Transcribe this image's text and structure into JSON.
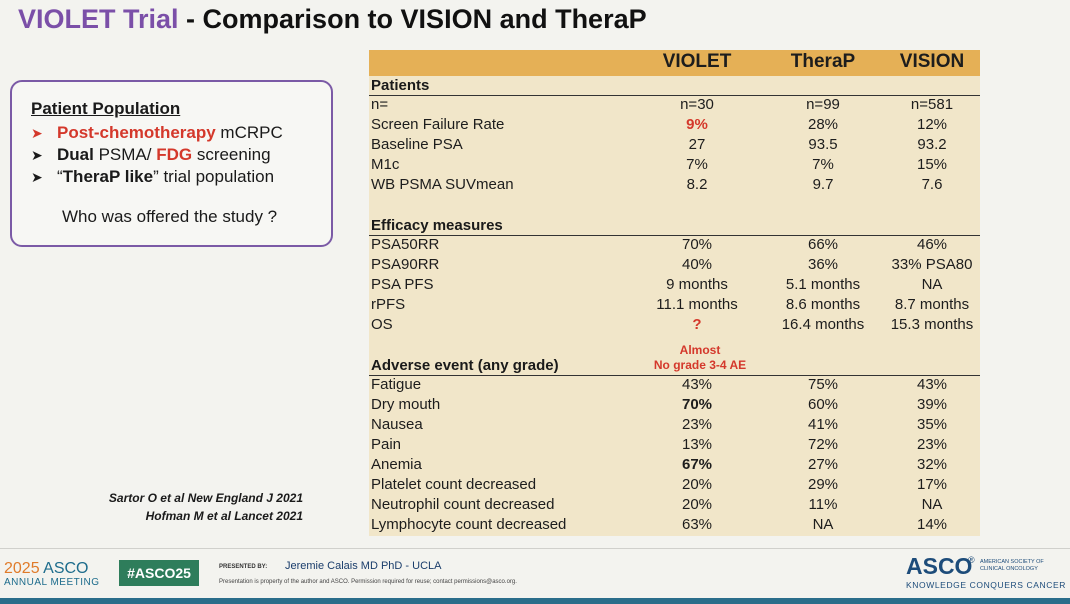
{
  "title": {
    "part1": "VIOLET Trial",
    "part2": " - Comparison to VISION and TheraP"
  },
  "population": {
    "heading": "Patient Population",
    "bullet1_strong": "Post-chemotherapy",
    "bullet1_rest": " mCRPC",
    "bullet2_dual": "Dual",
    "bullet2_mid": " PSMA/ ",
    "bullet2_fdg": "FDG",
    "bullet2_rest": " screening",
    "bullet3_q1": "“",
    "bullet3_strong": "TheraP like",
    "bullet3_rest": "” trial population",
    "question": "Who was offered the study ?"
  },
  "table": {
    "columns": [
      "VIOLET",
      "TheraP",
      "VISION"
    ],
    "sections": {
      "patients": "Patients",
      "efficacy": "Efficacy measures",
      "adverse": "Adverse event (any grade)"
    },
    "adverse_note_line1": "Almost",
    "adverse_note_line2": "No grade 3-4  AE",
    "rows": [
      {
        "label": "n=",
        "v": "n=30",
        "t": "n=99",
        "s": "n=581"
      },
      {
        "label": "Screen Failure Rate",
        "v": "9%",
        "t": "28%",
        "s": "12%"
      },
      {
        "label": "Baseline PSA",
        "v": "27",
        "t": "93.5",
        "s": "93.2"
      },
      {
        "label": "M1c",
        "v": "7%",
        "t": "7%",
        "s": "15%"
      },
      {
        "label": "WB PSMA SUVmean",
        "v": "8.2",
        "t": "9.7",
        "s": "7.6"
      },
      {
        "label": "PSA50RR",
        "v": "70%",
        "t": "66%",
        "s": "46%"
      },
      {
        "label": "PSA90RR",
        "v": "40%",
        "t": "36%",
        "s": "33% PSA80"
      },
      {
        "label": "PSA PFS",
        "v": "9 months",
        "t": "5.1 months",
        "s": "NA"
      },
      {
        "label": "rPFS",
        "v": "11.1 months",
        "t": "8.6 months",
        "s": "8.7 months"
      },
      {
        "label": "OS",
        "v": "?",
        "t": "16.4 months",
        "s": "15.3 months"
      },
      {
        "label": "Fatigue",
        "v": "43%",
        "t": "75%",
        "s": "43%"
      },
      {
        "label": "Dry mouth",
        "v": "70%",
        "t": "60%",
        "s": "39%"
      },
      {
        "label": "Nausea",
        "v": "23%",
        "t": "41%",
        "s": "35%"
      },
      {
        "label": "Pain",
        "v": "13%",
        "t": "72%",
        "s": "23%"
      },
      {
        "label": "Anemia",
        "v": "67%",
        "t": "27%",
        "s": "32%"
      },
      {
        "label": "Platelet count decreased",
        "v": "20%",
        "t": "29%",
        "s": "17%"
      },
      {
        "label": "Neutrophil count decreased",
        "v": "20%",
        "t": "11%",
        "s": "NA"
      },
      {
        "label": "Lymphocyte count decreased",
        "v": "63%",
        "t": "NA",
        "s": "14%"
      }
    ]
  },
  "references": {
    "line1": "Sartor O et al New England J 2021",
    "line2": "Hofman M et al Lancet 2021"
  },
  "footer": {
    "year": "2025",
    "asco": "ASCO",
    "meeting": "ANNUAL MEETING",
    "hashtag": "#ASCO25",
    "presented_by": "PRESENTED BY:",
    "presenter": "Jeremie Calais MD PhD - UCLA",
    "disclaimer": "Presentation is property of the author and ASCO. Permission required for reuse; contact permissions@asco.org.",
    "logo": "ASCO",
    "logo_mark": "®",
    "society": "AMERICAN SOCIETY OF CLINICAL ONCOLOGY",
    "tagline": "KNOWLEDGE CONQUERS CANCER"
  },
  "colors": {
    "title_purple": "#7b4fa8",
    "red_highlight": "#d4382b",
    "table_header": "#e5b056",
    "table_body": "#f1e6c9",
    "box_border": "#7b5aa6"
  }
}
